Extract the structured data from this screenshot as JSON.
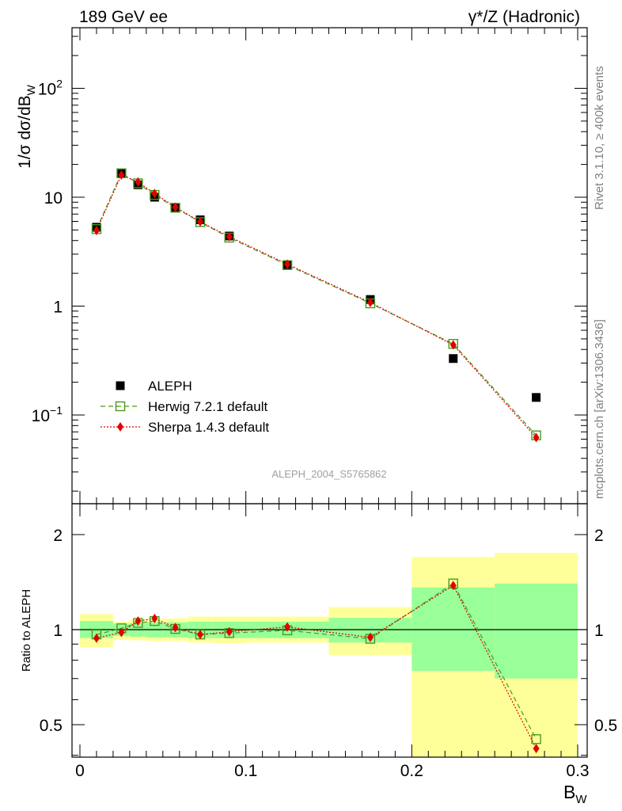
{
  "header": {
    "left": "189 GeV ee",
    "right": "γ*/Z (Hadronic)"
  },
  "side_labels": {
    "rivet": "Rivet 3.1.10, ≥ 400k events",
    "mcplots": "mcplots.cern.ch [arXiv:1306.3436]"
  },
  "watermark": "ALEPH_2004_S5765862",
  "colors": {
    "data": "#000000",
    "herwig": "#4a9a1a",
    "sherpa": "#e00000",
    "band_outer": "#ffff99",
    "band_inner": "#99ff99"
  },
  "chart_data": [
    {
      "type": "scatter",
      "panel": "main",
      "ylabel": "1/σ  dσ/dB_W",
      "yscale": "log",
      "xlim": [
        -0.01,
        0.3
      ],
      "ylim": [
        0.0185,
        370
      ],
      "ytick_labels": [
        {
          "value": 0.1,
          "label": "10",
          "sup": "−1"
        },
        {
          "value": 1,
          "label": "1",
          "sup": ""
        },
        {
          "value": 10,
          "label": "10",
          "sup": ""
        },
        {
          "value": 100,
          "label": "10",
          "sup": "2"
        }
      ],
      "legend_position": "lower-left",
      "x": [
        0.01,
        0.025,
        0.035,
        0.045,
        0.0575,
        0.0725,
        0.09,
        0.125,
        0.175,
        0.225,
        0.275
      ],
      "series": [
        {
          "name": "ALEPH",
          "marker": "square",
          "values": [
            5.3,
            16.5,
            13.0,
            10.0,
            8.0,
            6.2,
            4.4,
            2.4,
            1.15,
            0.33,
            0.145
          ]
        },
        {
          "name": "Herwig 7.2.1 default",
          "marker": "open-square",
          "line": "dashed",
          "values": [
            5.1,
            16.6,
            13.4,
            10.5,
            8.0,
            5.9,
            4.25,
            2.38,
            1.06,
            0.45,
            0.065
          ]
        },
        {
          "name": "Sherpa 1.4.3 default",
          "marker": "diamond",
          "line": "dotted",
          "values": [
            4.95,
            16.0,
            13.8,
            10.8,
            8.1,
            5.95,
            4.35,
            2.43,
            1.08,
            0.44,
            0.062
          ]
        }
      ]
    },
    {
      "type": "line",
      "panel": "ratio",
      "ylabel": "Ratio to ALEPH",
      "xlabel": "B_W",
      "xlim": [
        -0.01,
        0.3
      ],
      "ylim": [
        0.35,
        2.3
      ],
      "xticks": [
        0,
        0.1,
        0.2,
        0.3
      ],
      "xtick_labels": [
        "0",
        "0.1",
        "0.2",
        "0.3"
      ],
      "yticks": [
        0.5,
        1,
        2
      ],
      "ytick_labels": [
        "0.5",
        "1",
        "2"
      ],
      "x": [
        0.01,
        0.025,
        0.035,
        0.045,
        0.0575,
        0.0725,
        0.09,
        0.125,
        0.175,
        0.225,
        0.275
      ],
      "series": [
        {
          "name": "Herwig 7.2.1 default",
          "values": [
            0.965,
            1.01,
            1.05,
            1.065,
            1.005,
            0.965,
            0.975,
            0.995,
            0.935,
            1.4,
            0.45
          ]
        },
        {
          "name": "Sherpa 1.4.3 default",
          "values": [
            0.94,
            0.98,
            1.065,
            1.085,
            1.015,
            0.965,
            0.985,
            1.02,
            0.945,
            1.38,
            0.42
          ]
        }
      ],
      "uncertainty_bands": {
        "x_edges": [
          [
            0.0,
            0.02
          ],
          [
            0.02,
            0.03
          ],
          [
            0.03,
            0.04
          ],
          [
            0.04,
            0.05
          ],
          [
            0.05,
            0.065
          ],
          [
            0.065,
            0.08
          ],
          [
            0.08,
            0.1
          ],
          [
            0.1,
            0.15
          ],
          [
            0.15,
            0.2
          ],
          [
            0.2,
            0.25
          ],
          [
            0.25,
            0.3
          ]
        ],
        "outer": [
          [
            0.88,
            1.12
          ],
          [
            0.93,
            1.06
          ],
          [
            0.925,
            1.075
          ],
          [
            0.92,
            1.08
          ],
          [
            0.92,
            1.085
          ],
          [
            0.91,
            1.1
          ],
          [
            0.905,
            1.1
          ],
          [
            0.91,
            1.1
          ],
          [
            0.83,
            1.18
          ],
          [
            0.38,
            1.7
          ],
          [
            0.38,
            1.75
          ]
        ],
        "inner": [
          [
            0.94,
            1.065
          ],
          [
            0.955,
            1.045
          ],
          [
            0.95,
            1.05
          ],
          [
            0.945,
            1.055
          ],
          [
            0.945,
            1.055
          ],
          [
            0.94,
            1.06
          ],
          [
            0.94,
            1.06
          ],
          [
            0.94,
            1.06
          ],
          [
            0.91,
            1.09
          ],
          [
            0.74,
            1.36
          ],
          [
            0.7,
            1.4
          ]
        ]
      }
    }
  ]
}
